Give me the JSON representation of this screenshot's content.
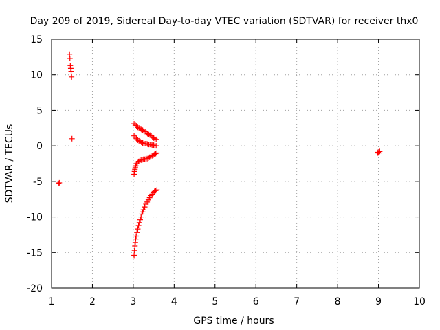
{
  "chart_data": {
    "type": "scatter",
    "title": "Day 209 of 2019, Sidereal Day-to-day VTEC variation (SDTVAR) for receiver thx0",
    "xlabel": "GPS time / hours",
    "ylabel": "SDTVAR / TECUs",
    "xlim": [
      1,
      10
    ],
    "ylim": [
      -20,
      15
    ],
    "x_ticks": [
      "1",
      "2",
      "3",
      "4",
      "5",
      "6",
      "7",
      "8",
      "9",
      "10"
    ],
    "y_ticks": [
      "-20",
      "-15",
      "-10",
      "-5",
      "0",
      "5",
      "10",
      "15"
    ],
    "grid": true,
    "marker": "+",
    "marker_color": "#ff0000",
    "series": [
      {
        "points": [
          [
            1.17,
            -5.3
          ],
          [
            1.19,
            -5.2
          ],
          [
            1.44,
            12.9
          ],
          [
            1.45,
            12.3
          ],
          [
            1.46,
            11.3
          ],
          [
            1.47,
            10.9
          ],
          [
            1.48,
            10.5
          ],
          [
            1.49,
            9.7
          ],
          [
            1.5,
            1.0
          ],
          [
            3.02,
            3.1
          ],
          [
            3.05,
            2.9
          ],
          [
            3.08,
            2.8
          ],
          [
            3.11,
            2.6
          ],
          [
            3.14,
            2.5
          ],
          [
            3.17,
            2.4
          ],
          [
            3.2,
            2.3
          ],
          [
            3.23,
            2.2
          ],
          [
            3.26,
            2.1
          ],
          [
            3.29,
            2.0
          ],
          [
            3.32,
            1.8
          ],
          [
            3.35,
            1.7
          ],
          [
            3.38,
            1.6
          ],
          [
            3.41,
            1.5
          ],
          [
            3.44,
            1.4
          ],
          [
            3.47,
            1.2
          ],
          [
            3.5,
            1.1
          ],
          [
            3.53,
            1.0
          ],
          [
            3.56,
            0.9
          ],
          [
            3.02,
            1.4
          ],
          [
            3.05,
            1.2
          ],
          [
            3.08,
            1.0
          ],
          [
            3.11,
            0.8
          ],
          [
            3.14,
            0.7
          ],
          [
            3.17,
            0.6
          ],
          [
            3.2,
            0.5
          ],
          [
            3.23,
            0.4
          ],
          [
            3.26,
            0.35
          ],
          [
            3.29,
            0.3
          ],
          [
            3.32,
            0.3
          ],
          [
            3.35,
            0.25
          ],
          [
            3.38,
            0.2
          ],
          [
            3.41,
            0.2
          ],
          [
            3.44,
            0.15
          ],
          [
            3.47,
            0.1
          ],
          [
            3.5,
            0.1
          ],
          [
            3.53,
            0.0
          ],
          [
            3.56,
            0.0
          ],
          [
            3.02,
            -4.0
          ],
          [
            3.03,
            -3.6
          ],
          [
            3.04,
            -3.3
          ],
          [
            3.05,
            -3.0
          ],
          [
            3.06,
            -2.8
          ],
          [
            3.08,
            -2.5
          ],
          [
            3.1,
            -2.3
          ],
          [
            3.13,
            -2.2
          ],
          [
            3.16,
            -2.1
          ],
          [
            3.19,
            -2.0
          ],
          [
            3.22,
            -1.95
          ],
          [
            3.25,
            -1.9
          ],
          [
            3.28,
            -1.9
          ],
          [
            3.31,
            -1.85
          ],
          [
            3.34,
            -1.8
          ],
          [
            3.37,
            -1.7
          ],
          [
            3.4,
            -1.6
          ],
          [
            3.43,
            -1.5
          ],
          [
            3.46,
            -1.4
          ],
          [
            3.49,
            -1.3
          ],
          [
            3.52,
            -1.2
          ],
          [
            3.55,
            -1.1
          ],
          [
            3.58,
            -1.0
          ],
          [
            3.02,
            -15.4
          ],
          [
            3.03,
            -14.7
          ],
          [
            3.04,
            -14.1
          ],
          [
            3.05,
            -13.6
          ],
          [
            3.06,
            -13.1
          ],
          [
            3.07,
            -12.7
          ],
          [
            3.09,
            -12.2
          ],
          [
            3.11,
            -11.7
          ],
          [
            3.13,
            -11.2
          ],
          [
            3.15,
            -10.8
          ],
          [
            3.17,
            -10.4
          ],
          [
            3.19,
            -10.0
          ],
          [
            3.21,
            -9.6
          ],
          [
            3.23,
            -9.3
          ],
          [
            3.25,
            -9.0
          ],
          [
            3.28,
            -8.6
          ],
          [
            3.31,
            -8.2
          ],
          [
            3.34,
            -7.9
          ],
          [
            3.37,
            -7.6
          ],
          [
            3.4,
            -7.3
          ],
          [
            3.43,
            -7.0
          ],
          [
            3.46,
            -6.8
          ],
          [
            3.49,
            -6.6
          ],
          [
            3.52,
            -6.4
          ],
          [
            3.55,
            -6.3
          ],
          [
            3.58,
            -6.2
          ],
          [
            8.98,
            -1.0
          ],
          [
            8.99,
            -0.9
          ],
          [
            9.01,
            -1.0
          ],
          [
            9.03,
            -0.8
          ]
        ]
      }
    ]
  }
}
